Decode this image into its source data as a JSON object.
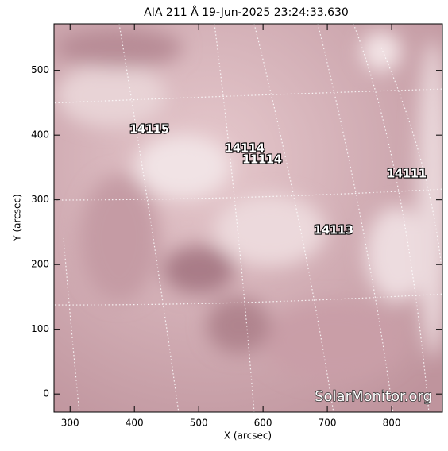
{
  "plot": {
    "title": "AIA 211 Å 19-Jun-2025 23:24:33.630",
    "xlabel": "X (arcsec)",
    "ylabel": "Y (arcsec)",
    "xlim": [
      275,
      879
    ],
    "ylim": [
      -28,
      572
    ],
    "xticks": [
      300,
      400,
      500,
      600,
      700,
      800
    ],
    "yticks": [
      0,
      100,
      200,
      300,
      400,
      500
    ]
  },
  "regions": [
    "14115",
    "14114",
    "11114",
    "14111",
    "14113"
  ],
  "watermark": "SolarMonitor.org"
}
